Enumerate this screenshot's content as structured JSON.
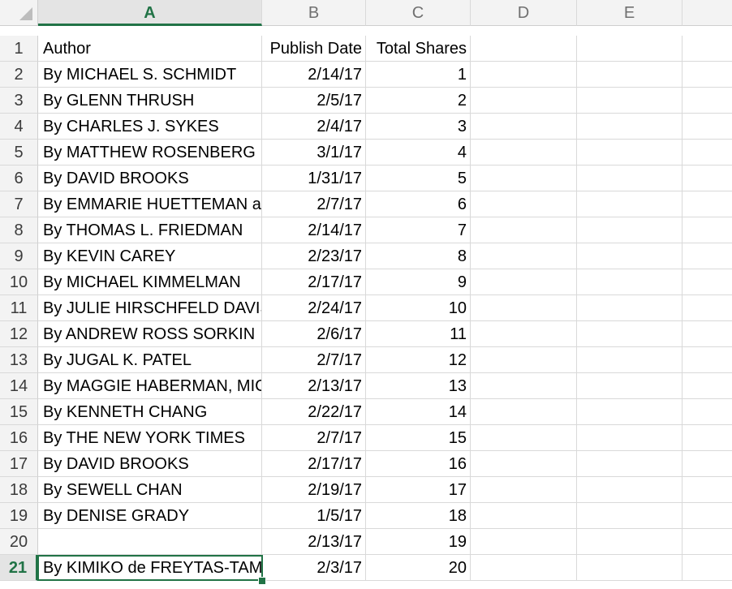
{
  "columns": [
    "A",
    "B",
    "C",
    "D",
    "E",
    ""
  ],
  "active_column": "A",
  "active_row": "21",
  "rows": [
    {
      "num": "1",
      "a": "Author",
      "b": "Publish Date",
      "c": "Total Shares"
    },
    {
      "num": "2",
      "a": "By MICHAEL S. SCHMIDT",
      "b": "2/14/17",
      "c": "1"
    },
    {
      "num": "3",
      "a": "By GLENN THRUSH",
      "b": "2/5/17",
      "c": "2"
    },
    {
      "num": "4",
      "a": "By CHARLES J. SYKES",
      "b": "2/4/17",
      "c": "3"
    },
    {
      "num": "5",
      "a": "By MATTHEW ROSENBERG",
      "b": "3/1/17",
      "c": "4"
    },
    {
      "num": "6",
      "a": "By DAVID BROOKS",
      "b": "1/31/17",
      "c": "5"
    },
    {
      "num": "7",
      "a": "By EMMARIE HUETTEMAN and",
      "b": "2/7/17",
      "c": "6"
    },
    {
      "num": "8",
      "a": "By THOMAS L. FRIEDMAN",
      "b": "2/14/17",
      "c": "7"
    },
    {
      "num": "9",
      "a": "By KEVIN CAREY",
      "b": "2/23/17",
      "c": "8"
    },
    {
      "num": "10",
      "a": "By MICHAEL KIMMELMAN",
      "b": "2/17/17",
      "c": "9"
    },
    {
      "num": "11",
      "a": "By JULIE HIRSCHFELD DAVIS",
      "b": "2/24/17",
      "c": "10"
    },
    {
      "num": "12",
      "a": "By ANDREW ROSS SORKIN",
      "b": "2/6/17",
      "c": "11"
    },
    {
      "num": "13",
      "a": "By JUGAL K. PATEL",
      "b": "2/7/17",
      "c": "12"
    },
    {
      "num": "14",
      "a": "By MAGGIE HABERMAN, MICHAEL",
      "b": "2/13/17",
      "c": "13"
    },
    {
      "num": "15",
      "a": "By KENNETH CHANG",
      "b": "2/22/17",
      "c": "14"
    },
    {
      "num": "16",
      "a": "By THE NEW YORK TIMES",
      "b": "2/7/17",
      "c": "15"
    },
    {
      "num": "17",
      "a": "By DAVID BROOKS",
      "b": "2/17/17",
      "c": "16"
    },
    {
      "num": "18",
      "a": "By SEWELL CHAN",
      "b": "2/19/17",
      "c": "17"
    },
    {
      "num": "19",
      "a": "By DENISE GRADY",
      "b": "1/5/17",
      "c": "18"
    },
    {
      "num": "20",
      "a": "",
      "b": "2/13/17",
      "c": "19"
    },
    {
      "num": "21",
      "a": "By KIMIKO de FREYTAS-TAMURA",
      "b": "2/3/17",
      "c": "20"
    }
  ],
  "colors": {
    "accent": "#217346",
    "header_bg": "#f3f3f3",
    "grid": "#d9d9d9"
  }
}
